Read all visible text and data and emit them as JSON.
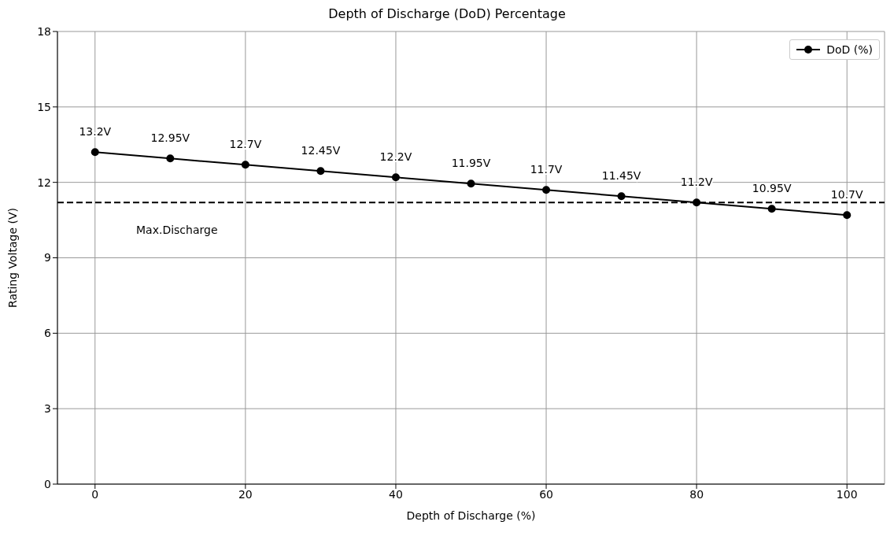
{
  "chart_data": {
    "type": "line",
    "title": "Depth of Discharge (DoD) Percentage",
    "xlabel": "Depth of Discharge (%)",
    "ylabel": "Rating Voltage (V)",
    "x": [
      0,
      10,
      20,
      30,
      40,
      50,
      60,
      70,
      80,
      90,
      100
    ],
    "series": [
      {
        "name": "DoD (%)",
        "color": "#000000",
        "values": [
          13.2,
          12.95,
          12.7,
          12.45,
          12.2,
          11.95,
          11.7,
          11.45,
          11.2,
          10.95,
          10.7
        ],
        "value_labels": [
          "13.2V",
          "12.95V",
          "12.7V",
          "12.45V",
          "12.2V",
          "11.95V",
          "11.7V",
          "11.45V",
          "11.2V",
          "10.95V",
          "10.7V"
        ]
      }
    ],
    "xlim": [
      -5,
      105
    ],
    "xticks": [
      0,
      20,
      40,
      60,
      80,
      100
    ],
    "ylim": [
      0,
      18
    ],
    "yticks": [
      0,
      3,
      6,
      9,
      12,
      15,
      18
    ],
    "ref_lines": [
      {
        "axis": "y",
        "value": 11.2,
        "label": "Max.Discharge",
        "color": "#000000",
        "line_style": "dashed"
      }
    ],
    "grid": true,
    "legend": "top right",
    "marker": "circle",
    "line_style": "solid"
  }
}
